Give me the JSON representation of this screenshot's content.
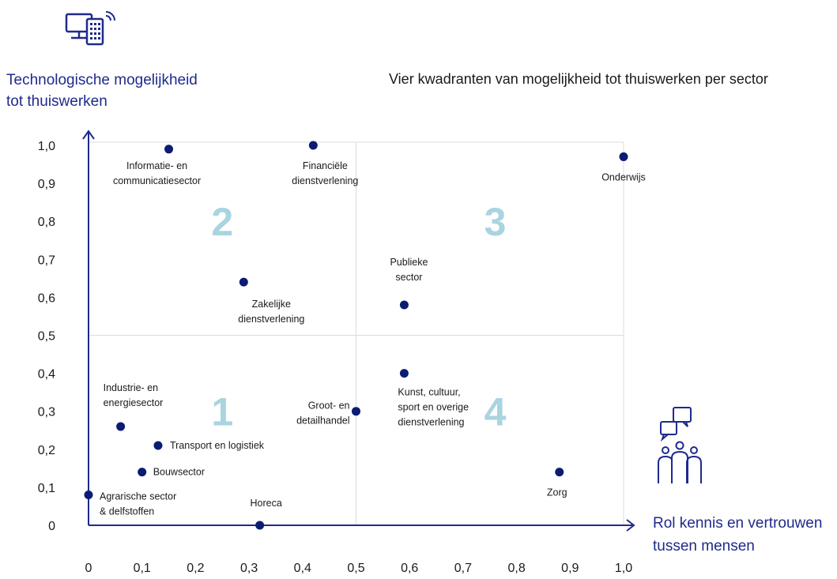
{
  "title": "Vier kwadranten van mogelijkheid tot thuiswerken per sector",
  "colors": {
    "axis": "#1f2a8c",
    "dot": "#0b1c72",
    "quadrant_number": "#a9d4e0",
    "grid": "#dcdcdc"
  },
  "icons": {
    "top_left": "computer-and-phone-icon",
    "bottom_right": "people-chat-icon"
  },
  "chart_data": {
    "type": "scatter",
    "title": "Vier kwadranten van mogelijkheid tot thuiswerken per sector",
    "xlabel_lines": [
      "Rol kennis en vertrouwen",
      "tussen mensen"
    ],
    "ylabel_lines": [
      "Technologische mogelijkheid",
      "tot thuiswerken"
    ],
    "xlim": [
      0,
      1
    ],
    "ylim": [
      0,
      1
    ],
    "x_ticks": [
      "0",
      "0,1",
      "0,2",
      "0,3",
      "0,4",
      "0,5",
      "0,6",
      "0,7",
      "0,8",
      "0,9",
      "1,0"
    ],
    "y_ticks": [
      "0",
      "0,1",
      "0,2",
      "0,3",
      "0,4",
      "0,5",
      "0,6",
      "0,7",
      "0,8",
      "0,9",
      "1,0"
    ],
    "quadrant_dividers": {
      "x": 0.5,
      "y": 0.5
    },
    "quadrants": [
      {
        "label": "1",
        "x": 0.25,
        "y": 0.3
      },
      {
        "label": "2",
        "x": 0.25,
        "y": 0.8
      },
      {
        "label": "3",
        "x": 0.76,
        "y": 0.8
      },
      {
        "label": "4",
        "x": 0.76,
        "y": 0.3
      }
    ],
    "points": [
      {
        "label_lines": [
          "Informatie- en",
          "communicatiesector"
        ],
        "x": 0.15,
        "y": 0.99
      },
      {
        "label_lines": [
          "Financiële",
          "dienstverlening"
        ],
        "x": 0.42,
        "y": 1.0
      },
      {
        "label_lines": [
          "Onderwijs"
        ],
        "x": 1.0,
        "y": 0.97
      },
      {
        "label_lines": [
          "Zakelijke",
          "dienstverlening"
        ],
        "x": 0.29,
        "y": 0.64
      },
      {
        "label_lines": [
          "Publieke",
          "sector"
        ],
        "x": 0.59,
        "y": 0.58
      },
      {
        "label_lines": [
          "Kunst, cultuur,",
          "sport en overige",
          "dienstverlening"
        ],
        "x": 0.59,
        "y": 0.4
      },
      {
        "label_lines": [
          "Groot- en",
          "detailhandel"
        ],
        "x": 0.5,
        "y": 0.3
      },
      {
        "label_lines": [
          "Industrie- en",
          "energiesector"
        ],
        "x": 0.06,
        "y": 0.26
      },
      {
        "label_lines": [
          "Transport en logistiek"
        ],
        "x": 0.13,
        "y": 0.21
      },
      {
        "label_lines": [
          "Bouwsector"
        ],
        "x": 0.1,
        "y": 0.14
      },
      {
        "label_lines": [
          "Agrarische sector",
          "& delfstoffen"
        ],
        "x": 0.0,
        "y": 0.08
      },
      {
        "label_lines": [
          "Horeca"
        ],
        "x": 0.32,
        "y": 0.0
      },
      {
        "label_lines": [
          "Zorg"
        ],
        "x": 0.88,
        "y": 0.14
      }
    ]
  }
}
